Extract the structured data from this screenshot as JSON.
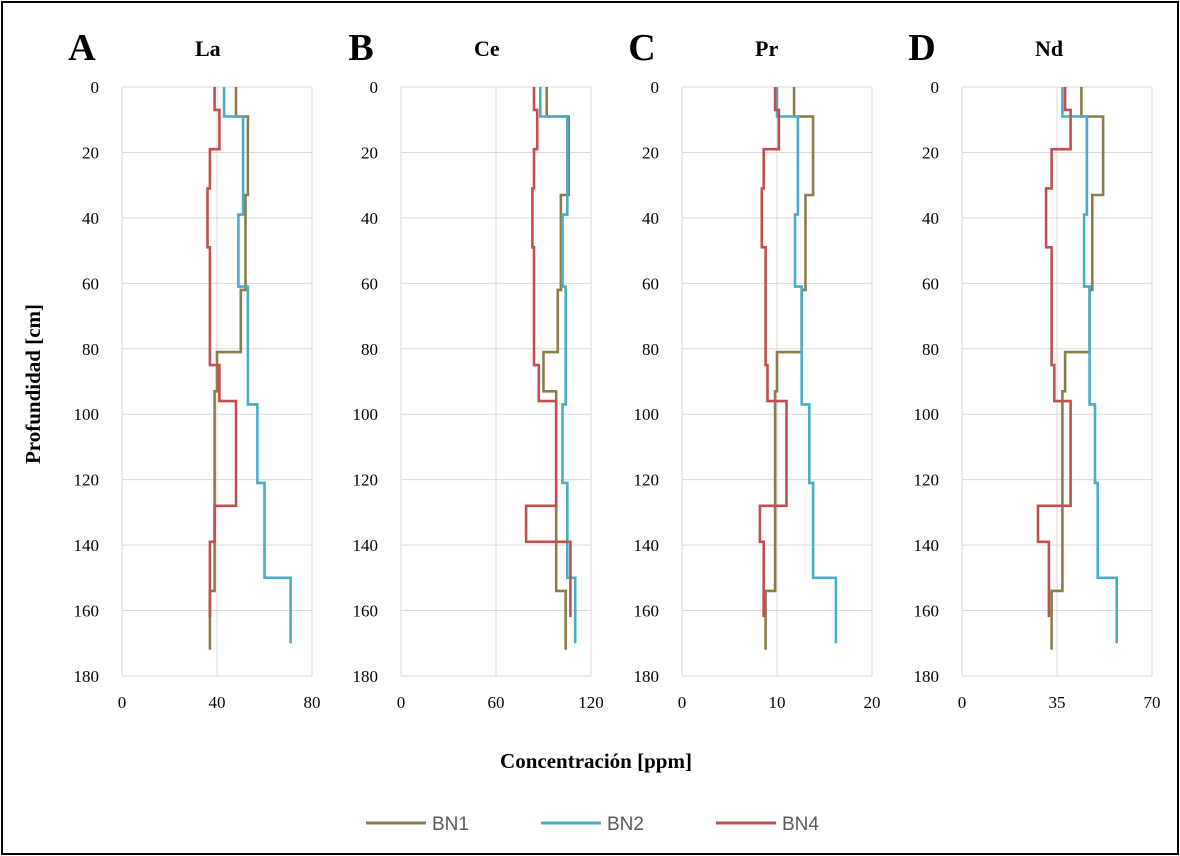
{
  "figure": {
    "x_axis_title": "Concentración [ppm]",
    "y_axis_title": "Profundidad [cm]"
  },
  "chart_data": [
    {
      "type": "line",
      "panel_letter": "A",
      "title": "La",
      "xlim": [
        0,
        80
      ],
      "x_ticks": [
        0,
        40,
        80
      ],
      "ylim": [
        180,
        0
      ],
      "y_ticks": [
        0,
        20,
        40,
        60,
        80,
        100,
        120,
        140,
        160,
        180
      ],
      "grid": "vertical and horizontal",
      "series": [
        {
          "name": "BN1",
          "color": "#8b7d4a",
          "points": [
            [
              48,
              0
            ],
            [
              48,
              9
            ],
            [
              53,
              9
            ],
            [
              53,
              33
            ],
            [
              52,
              33
            ],
            [
              52,
              62
            ],
            [
              50,
              62
            ],
            [
              50,
              81
            ],
            [
              40,
              81
            ],
            [
              40,
              93
            ],
            [
              39,
              93
            ],
            [
              39,
              154
            ],
            [
              37,
              154
            ],
            [
              37,
              172
            ]
          ]
        },
        {
          "name": "BN2",
          "color": "#4bacc6",
          "points": [
            [
              43,
              0
            ],
            [
              43,
              9
            ],
            [
              51,
              9
            ],
            [
              51,
              39
            ],
            [
              49,
              39
            ],
            [
              49,
              61
            ],
            [
              53,
              61
            ],
            [
              53,
              97
            ],
            [
              57,
              97
            ],
            [
              57,
              121
            ],
            [
              60,
              121
            ],
            [
              60,
              150
            ],
            [
              71,
              150
            ],
            [
              71,
              170
            ]
          ]
        },
        {
          "name": "BN4",
          "color": "#c0504d",
          "points": [
            [
              39,
              0
            ],
            [
              39,
              7
            ],
            [
              41,
              7
            ],
            [
              41,
              19
            ],
            [
              37,
              19
            ],
            [
              37,
              31
            ],
            [
              36,
              31
            ],
            [
              36,
              49
            ],
            [
              37,
              49
            ],
            [
              37,
              85
            ],
            [
              41,
              85
            ],
            [
              41,
              96
            ],
            [
              48,
              96
            ],
            [
              48,
              128
            ],
            [
              39,
              128
            ],
            [
              39,
              139
            ],
            [
              37,
              139
            ],
            [
              37,
              162
            ]
          ]
        }
      ]
    },
    {
      "type": "line",
      "panel_letter": "B",
      "title": "Ce",
      "xlim": [
        0,
        120
      ],
      "x_ticks": [
        0,
        60,
        120
      ],
      "ylim": [
        180,
        0
      ],
      "y_ticks": [
        0,
        20,
        40,
        60,
        80,
        100,
        120,
        140,
        160,
        180
      ],
      "grid": "vertical and horizontal",
      "series": [
        {
          "name": "BN1",
          "color": "#8b7d4a",
          "points": [
            [
              92,
              0
            ],
            [
              92,
              9
            ],
            [
              106,
              9
            ],
            [
              106,
              33
            ],
            [
              101,
              33
            ],
            [
              101,
              62
            ],
            [
              99,
              62
            ],
            [
              99,
              81
            ],
            [
              90,
              81
            ],
            [
              90,
              93
            ],
            [
              98,
              93
            ],
            [
              98,
              154
            ],
            [
              104,
              154
            ],
            [
              104,
              172
            ]
          ]
        },
        {
          "name": "BN2",
          "color": "#4bacc6",
          "points": [
            [
              88,
              0
            ],
            [
              88,
              9
            ],
            [
              105,
              9
            ],
            [
              105,
              39
            ],
            [
              102,
              39
            ],
            [
              102,
              61
            ],
            [
              104,
              61
            ],
            [
              104,
              97
            ],
            [
              102,
              97
            ],
            [
              102,
              121
            ],
            [
              105,
              121
            ],
            [
              105,
              150
            ],
            [
              110,
              150
            ],
            [
              110,
              170
            ]
          ]
        },
        {
          "name": "BN4",
          "color": "#c0504d",
          "points": [
            [
              84,
              0
            ],
            [
              84,
              7
            ],
            [
              86,
              7
            ],
            [
              86,
              19
            ],
            [
              84,
              19
            ],
            [
              84,
              31
            ],
            [
              83,
              31
            ],
            [
              83,
              49
            ],
            [
              84,
              49
            ],
            [
              84,
              85
            ],
            [
              87,
              85
            ],
            [
              87,
              96
            ],
            [
              98,
              96
            ],
            [
              98,
              128
            ],
            [
              79,
              128
            ],
            [
              79,
              139
            ],
            [
              107,
              139
            ],
            [
              107,
              162
            ]
          ]
        }
      ]
    },
    {
      "type": "line",
      "panel_letter": "C",
      "title": "Pr",
      "xlim": [
        0,
        20
      ],
      "x_ticks": [
        0,
        10,
        20
      ],
      "ylim": [
        180,
        0
      ],
      "y_ticks": [
        0,
        20,
        40,
        60,
        80,
        100,
        120,
        140,
        160,
        180
      ],
      "grid": "vertical and horizontal",
      "series": [
        {
          "name": "BN1",
          "color": "#8b7d4a",
          "points": [
            [
              11.8,
              0
            ],
            [
              11.8,
              9
            ],
            [
              13.8,
              9
            ],
            [
              13.8,
              33
            ],
            [
              13,
              33
            ],
            [
              13,
              62
            ],
            [
              12.6,
              62
            ],
            [
              12.6,
              81
            ],
            [
              10,
              81
            ],
            [
              10,
              93
            ],
            [
              9.8,
              93
            ],
            [
              9.8,
              154
            ],
            [
              8.8,
              154
            ],
            [
              8.8,
              172
            ]
          ]
        },
        {
          "name": "BN2",
          "color": "#4bacc6",
          "points": [
            [
              10,
              0
            ],
            [
              10,
              9
            ],
            [
              12.2,
              9
            ],
            [
              12.2,
              39
            ],
            [
              11.9,
              39
            ],
            [
              11.9,
              61
            ],
            [
              12.6,
              61
            ],
            [
              12.6,
              97
            ],
            [
              13.4,
              97
            ],
            [
              13.4,
              121
            ],
            [
              13.8,
              121
            ],
            [
              13.8,
              150
            ],
            [
              16.2,
              150
            ],
            [
              16.2,
              170
            ]
          ]
        },
        {
          "name": "BN4",
          "color": "#c0504d",
          "points": [
            [
              9.8,
              0
            ],
            [
              9.8,
              7
            ],
            [
              10.2,
              7
            ],
            [
              10.2,
              19
            ],
            [
              8.6,
              19
            ],
            [
              8.6,
              31
            ],
            [
              8.4,
              31
            ],
            [
              8.4,
              49
            ],
            [
              8.8,
              49
            ],
            [
              8.8,
              85
            ],
            [
              9,
              85
            ],
            [
              9,
              96
            ],
            [
              11,
              96
            ],
            [
              11,
              128
            ],
            [
              8.2,
              128
            ],
            [
              8.2,
              139
            ],
            [
              8.6,
              139
            ],
            [
              8.6,
              162
            ]
          ]
        }
      ]
    },
    {
      "type": "line",
      "panel_letter": "D",
      "title": "Nd",
      "xlim": [
        0,
        70
      ],
      "x_ticks": [
        0,
        35,
        70
      ],
      "ylim": [
        180,
        0
      ],
      "y_ticks": [
        0,
        20,
        40,
        60,
        80,
        100,
        120,
        140,
        160,
        180
      ],
      "grid": "vertical and horizontal",
      "series": [
        {
          "name": "BN1",
          "color": "#8b7d4a",
          "points": [
            [
              44,
              0
            ],
            [
              44,
              9
            ],
            [
              52,
              9
            ],
            [
              52,
              33
            ],
            [
              48,
              33
            ],
            [
              48,
              62
            ],
            [
              47,
              62
            ],
            [
              47,
              81
            ],
            [
              38,
              81
            ],
            [
              38,
              93
            ],
            [
              37,
              93
            ],
            [
              37,
              154
            ],
            [
              33,
              154
            ],
            [
              33,
              172
            ]
          ]
        },
        {
          "name": "BN2",
          "color": "#4bacc6",
          "points": [
            [
              37,
              0
            ],
            [
              37,
              9
            ],
            [
              46,
              9
            ],
            [
              46,
              39
            ],
            [
              45,
              39
            ],
            [
              45,
              61
            ],
            [
              47,
              61
            ],
            [
              47,
              97
            ],
            [
              49,
              97
            ],
            [
              49,
              121
            ],
            [
              50,
              121
            ],
            [
              50,
              150
            ],
            [
              57,
              150
            ],
            [
              57,
              170
            ]
          ]
        },
        {
          "name": "BN4",
          "color": "#c0504d",
          "points": [
            [
              38,
              0
            ],
            [
              38,
              7
            ],
            [
              40,
              7
            ],
            [
              40,
              19
            ],
            [
              33,
              19
            ],
            [
              33,
              31
            ],
            [
              31,
              31
            ],
            [
              31,
              49
            ],
            [
              33,
              49
            ],
            [
              33,
              85
            ],
            [
              34,
              85
            ],
            [
              34,
              96
            ],
            [
              40,
              96
            ],
            [
              40,
              128
            ],
            [
              28,
              128
            ],
            [
              28,
              139
            ],
            [
              32,
              139
            ],
            [
              32,
              162
            ]
          ]
        }
      ]
    }
  ],
  "legend": [
    {
      "name": "BN1",
      "color": "#8b7d4a"
    },
    {
      "name": "BN2",
      "color": "#4bacc6"
    },
    {
      "name": "BN4",
      "color": "#c0504d"
    }
  ]
}
